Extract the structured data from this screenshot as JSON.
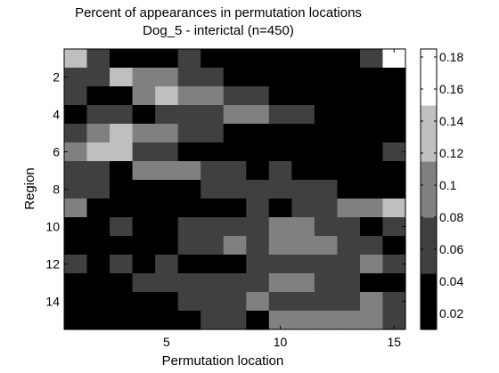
{
  "chart_data": {
    "type": "heatmap",
    "title": "Percent of appearances in permutation locations",
    "subtitle": "Dog_5 - interictal (n=450)",
    "xlabel": "Permutation location",
    "ylabel": "Region",
    "x": [
      1,
      2,
      3,
      4,
      5,
      6,
      7,
      8,
      9,
      10,
      11,
      12,
      13,
      14,
      15
    ],
    "y": [
      1,
      2,
      3,
      4,
      5,
      6,
      7,
      8,
      9,
      10,
      11,
      12,
      13,
      14,
      15
    ],
    "xticks": [
      5,
      10,
      15
    ],
    "yticks": [
      2,
      4,
      6,
      8,
      10,
      12,
      14
    ],
    "xlim": [
      0.5,
      15.5
    ],
    "ylim": [
      0.5,
      15.5
    ],
    "y_reversed": true,
    "colormap": "gray",
    "color_levels": 5,
    "clim": [
      0.01,
      0.185
    ],
    "colorbar_ticks": [
      0.02,
      0.04,
      0.06,
      0.08,
      0.1,
      0.12,
      0.14,
      0.16,
      0.18
    ],
    "values": [
      [
        0.15,
        0.06,
        0.03,
        0.03,
        0.03,
        0.06,
        0.03,
        0.03,
        0.03,
        0.03,
        0.03,
        0.03,
        0.03,
        0.06,
        0.16
      ],
      [
        0.06,
        0.06,
        0.15,
        0.11,
        0.11,
        0.06,
        0.06,
        0.03,
        0.03,
        0.03,
        0.03,
        0.03,
        0.03,
        0.03,
        0.03
      ],
      [
        0.06,
        0.03,
        0.03,
        0.11,
        0.15,
        0.11,
        0.11,
        0.06,
        0.06,
        0.03,
        0.03,
        0.03,
        0.03,
        0.03,
        0.03
      ],
      [
        0.03,
        0.06,
        0.06,
        0.03,
        0.06,
        0.06,
        0.06,
        0.11,
        0.11,
        0.06,
        0.06,
        0.03,
        0.03,
        0.03,
        0.03
      ],
      [
        0.06,
        0.11,
        0.15,
        0.11,
        0.11,
        0.06,
        0.06,
        0.03,
        0.03,
        0.03,
        0.03,
        0.03,
        0.03,
        0.03,
        0.03
      ],
      [
        0.11,
        0.15,
        0.15,
        0.06,
        0.06,
        0.03,
        0.03,
        0.03,
        0.03,
        0.03,
        0.03,
        0.03,
        0.03,
        0.03,
        0.06
      ],
      [
        0.06,
        0.06,
        0.03,
        0.11,
        0.11,
        0.11,
        0.06,
        0.06,
        0.03,
        0.06,
        0.03,
        0.03,
        0.03,
        0.03,
        0.03
      ],
      [
        0.06,
        0.06,
        0.03,
        0.03,
        0.03,
        0.03,
        0.06,
        0.06,
        0.06,
        0.06,
        0.06,
        0.06,
        0.03,
        0.03,
        0.03
      ],
      [
        0.11,
        0.03,
        0.03,
        0.03,
        0.03,
        0.03,
        0.03,
        0.03,
        0.06,
        0.03,
        0.06,
        0.06,
        0.11,
        0.11,
        0.15
      ],
      [
        0.03,
        0.03,
        0.06,
        0.03,
        0.03,
        0.06,
        0.06,
        0.06,
        0.06,
        0.11,
        0.11,
        0.06,
        0.06,
        0.03,
        0.06
      ],
      [
        0.03,
        0.03,
        0.03,
        0.03,
        0.03,
        0.06,
        0.06,
        0.11,
        0.06,
        0.11,
        0.11,
        0.11,
        0.06,
        0.06,
        0.03
      ],
      [
        0.06,
        0.03,
        0.06,
        0.03,
        0.06,
        0.03,
        0.03,
        0.03,
        0.06,
        0.06,
        0.06,
        0.06,
        0.06,
        0.11,
        0.06
      ],
      [
        0.03,
        0.03,
        0.03,
        0.06,
        0.06,
        0.06,
        0.06,
        0.06,
        0.06,
        0.11,
        0.11,
        0.06,
        0.06,
        0.03,
        0.03
      ],
      [
        0.03,
        0.03,
        0.03,
        0.03,
        0.03,
        0.06,
        0.06,
        0.06,
        0.11,
        0.06,
        0.06,
        0.06,
        0.06,
        0.11,
        0.06
      ],
      [
        0.03,
        0.03,
        0.03,
        0.03,
        0.03,
        0.03,
        0.06,
        0.06,
        0.03,
        0.11,
        0.11,
        0.11,
        0.11,
        0.11,
        0.06
      ]
    ]
  }
}
